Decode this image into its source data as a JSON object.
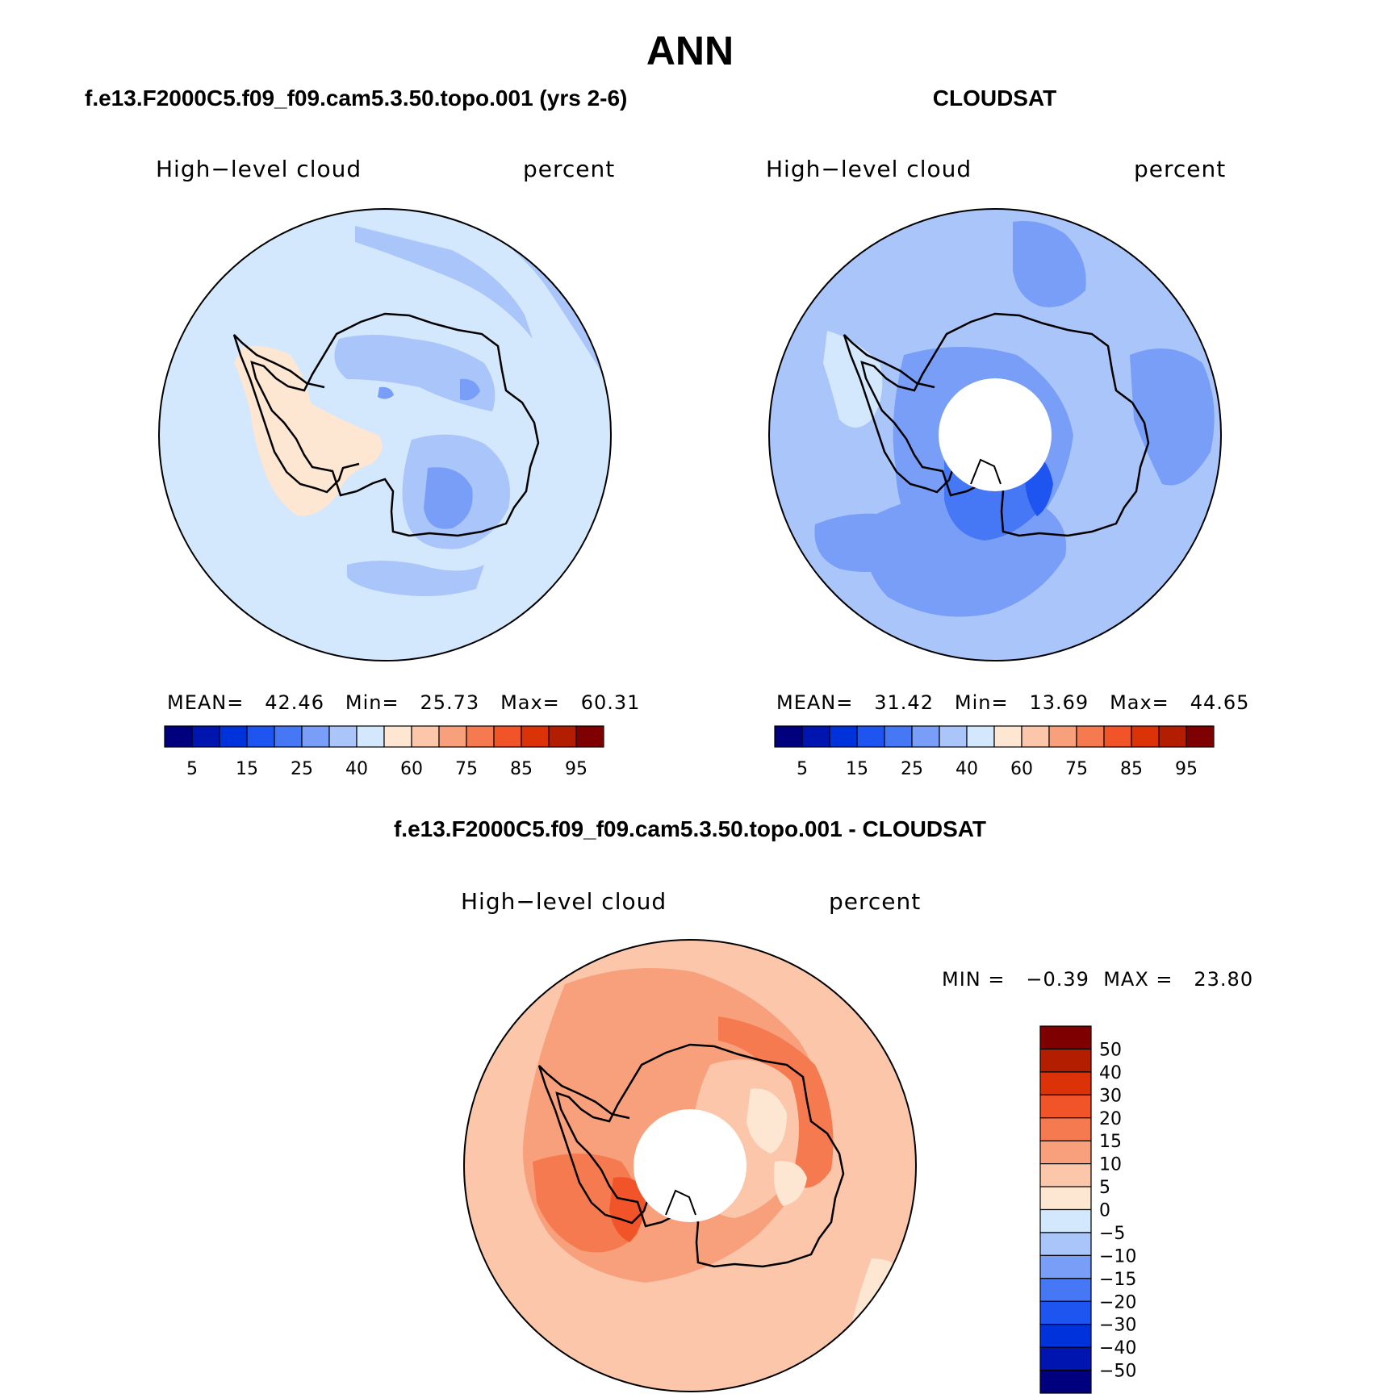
{
  "title": "ANN",
  "panels": {
    "model": {
      "title": "f.e13.F2000C5.f09_f09.cam5.3.50.topo.001 (yrs 2-6)",
      "variable": "High−level cloud",
      "units": "percent",
      "stats": {
        "mean_label": "MEAN=",
        "mean": "42.46",
        "min_label": "Min=",
        "min": "25.73",
        "max_label": "Max=",
        "max": "60.31"
      }
    },
    "obs": {
      "title": "CLOUDSAT",
      "variable": "High−level cloud",
      "units": "percent",
      "stats": {
        "mean_label": "MEAN=",
        "mean": "31.42",
        "min_label": "Min=",
        "min": "13.69",
        "max_label": "Max=",
        "max": "44.65"
      }
    },
    "diff": {
      "title": "f.e13.F2000C5.f09_f09.cam5.3.50.topo.001 - CLOUDSAT",
      "variable": "High−level cloud",
      "units": "percent",
      "stats": {
        "min_label": "MIN =",
        "min": "−0.39",
        "max_label": "MAX =",
        "max": "23.80"
      }
    }
  },
  "colorbar_abs": {
    "colors": [
      "#00007f",
      "#0014b0",
      "#0032dc",
      "#1e55f0",
      "#4678f5",
      "#789ef7",
      "#aac5fa",
      "#d4e8fd",
      "#fde6d2",
      "#fbc6aa",
      "#f8a07c",
      "#f57a50",
      "#f05428",
      "#dc3208",
      "#b41e00",
      "#7f0000"
    ],
    "labels": [
      "5",
      "15",
      "25",
      "40",
      "60",
      "75",
      "85",
      "95"
    ]
  },
  "colorbar_diff": {
    "colors": [
      "#00007f",
      "#0014b0",
      "#0032dc",
      "#1e55f0",
      "#4678f5",
      "#789ef7",
      "#aac5fa",
      "#d4e8fd",
      "#fde6d2",
      "#fbc6aa",
      "#f8a07c",
      "#f57a50",
      "#f05428",
      "#dc3208",
      "#b41e00",
      "#7f0000"
    ],
    "labels": [
      "50",
      "40",
      "30",
      "20",
      "15",
      "10",
      "5",
      "0",
      "−5",
      "−10",
      "−15",
      "−20",
      "−30",
      "−40",
      "−50"
    ]
  }
}
